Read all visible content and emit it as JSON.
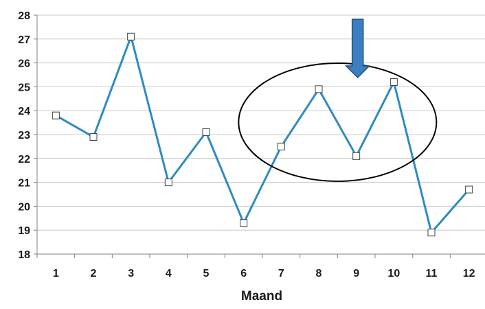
{
  "chart_data": {
    "type": "line",
    "x": [
      1,
      2,
      3,
      4,
      5,
      6,
      7,
      8,
      9,
      10,
      11,
      12
    ],
    "series": [
      {
        "values": [
          23.8,
          22.9,
          27.1,
          21.0,
          23.1,
          19.3,
          22.5,
          24.9,
          22.1,
          25.2,
          18.9,
          20.7
        ]
      }
    ],
    "title": "",
    "xlabel": "Maand",
    "ylabel": "",
    "ylim": [
      18,
      28
    ],
    "yticks": [
      18,
      19,
      20,
      21,
      22,
      23,
      24,
      25,
      26,
      27,
      28
    ],
    "grid": "horizontal",
    "legend": "none",
    "annotations": {
      "ellipse_highlight": {
        "x_from": 7,
        "x_to": 10,
        "note": "highlights months 7–10"
      },
      "arrow_down": {
        "points_to_x": 9
      }
    }
  },
  "colors": {
    "line": "#2E8BC0",
    "marker_fill": "#ffffff",
    "marker_stroke": "#404040",
    "grid": "#c8c8c8",
    "axis": "#808080",
    "arrow_fill": "#3A7FC1",
    "arrow_stroke": "#1F4E79"
  }
}
